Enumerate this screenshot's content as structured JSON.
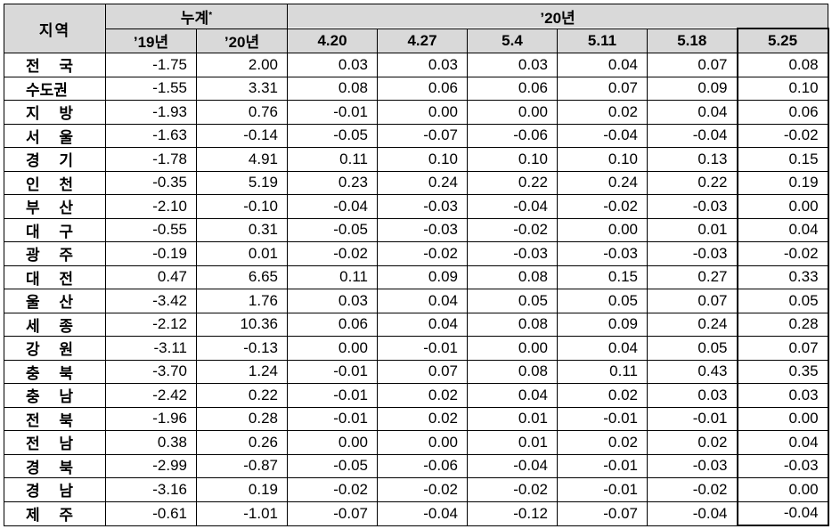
{
  "header": {
    "region_label": "지역",
    "cumulative_label": "누계",
    "cumulative_mark": "*",
    "year_group_label": "’20년",
    "cumulative_years": [
      "’19년",
      "’20년"
    ],
    "weeks": [
      "4.20",
      "4.27",
      "5.4",
      "5.11",
      "5.18",
      "5.25"
    ]
  },
  "rows": [
    {
      "region": "전 국",
      "values": [
        "-1.75",
        "2.00",
        "0.03",
        "0.03",
        "0.03",
        "0.04",
        "0.07",
        "0.08"
      ]
    },
    {
      "region": "수도권",
      "values": [
        "-1.55",
        "3.31",
        "0.08",
        "0.06",
        "0.06",
        "0.07",
        "0.09",
        "0.10"
      ]
    },
    {
      "region": "지 방",
      "values": [
        "-1.93",
        "0.76",
        "-0.01",
        "0.00",
        "0.00",
        "0.02",
        "0.04",
        "0.06"
      ]
    },
    {
      "region": "서 울",
      "values": [
        "-1.63",
        "-0.14",
        "-0.05",
        "-0.07",
        "-0.06",
        "-0.04",
        "-0.04",
        "-0.02"
      ]
    },
    {
      "region": "경 기",
      "values": [
        "-1.78",
        "4.91",
        "0.11",
        "0.10",
        "0.10",
        "0.10",
        "0.13",
        "0.15"
      ]
    },
    {
      "region": "인 천",
      "values": [
        "-0.35",
        "5.19",
        "0.23",
        "0.24",
        "0.22",
        "0.24",
        "0.22",
        "0.19"
      ]
    },
    {
      "region": "부 산",
      "values": [
        "-2.10",
        "-0.10",
        "-0.04",
        "-0.03",
        "-0.04",
        "-0.02",
        "-0.03",
        "0.00"
      ]
    },
    {
      "region": "대 구",
      "values": [
        "-0.55",
        "0.31",
        "-0.05",
        "-0.03",
        "-0.02",
        "0.00",
        "0.01",
        "0.04"
      ]
    },
    {
      "region": "광 주",
      "values": [
        "-0.19",
        "0.01",
        "-0.02",
        "-0.02",
        "-0.03",
        "-0.03",
        "-0.03",
        "-0.02"
      ]
    },
    {
      "region": "대 전",
      "values": [
        "0.47",
        "6.65",
        "0.11",
        "0.09",
        "0.08",
        "0.15",
        "0.27",
        "0.33"
      ]
    },
    {
      "region": "울 산",
      "values": [
        "-3.42",
        "1.76",
        "0.03",
        "0.04",
        "0.05",
        "0.05",
        "0.07",
        "0.05"
      ]
    },
    {
      "region": "세 종",
      "values": [
        "-2.12",
        "10.36",
        "0.06",
        "0.04",
        "0.08",
        "0.09",
        "0.24",
        "0.28"
      ]
    },
    {
      "region": "강 원",
      "values": [
        "-3.11",
        "-0.13",
        "0.00",
        "-0.01",
        "0.00",
        "0.04",
        "0.05",
        "0.07"
      ]
    },
    {
      "region": "충 북",
      "values": [
        "-3.70",
        "1.24",
        "-0.01",
        "0.07",
        "0.08",
        "0.11",
        "0.43",
        "0.35"
      ]
    },
    {
      "region": "충 남",
      "values": [
        "-2.42",
        "0.22",
        "-0.01",
        "0.02",
        "0.04",
        "0.02",
        "0.03",
        "0.03"
      ]
    },
    {
      "region": "전 북",
      "values": [
        "-1.96",
        "0.28",
        "-0.01",
        "0.02",
        "0.01",
        "-0.01",
        "-0.01",
        "0.00"
      ]
    },
    {
      "region": "전 남",
      "values": [
        "0.38",
        "0.26",
        "0.00",
        "0.00",
        "0.01",
        "0.02",
        "0.02",
        "0.04"
      ]
    },
    {
      "region": "경 북",
      "values": [
        "-2.99",
        "-0.87",
        "-0.05",
        "-0.06",
        "-0.04",
        "-0.01",
        "-0.03",
        "-0.03"
      ]
    },
    {
      "region": "경 남",
      "values": [
        "-3.16",
        "0.19",
        "-0.02",
        "-0.02",
        "-0.02",
        "-0.01",
        "-0.02",
        "0.00"
      ]
    },
    {
      "region": "제 주",
      "values": [
        "-0.61",
        "-1.01",
        "-0.07",
        "-0.04",
        "-0.12",
        "-0.07",
        "-0.04",
        "-0.04"
      ]
    }
  ]
}
